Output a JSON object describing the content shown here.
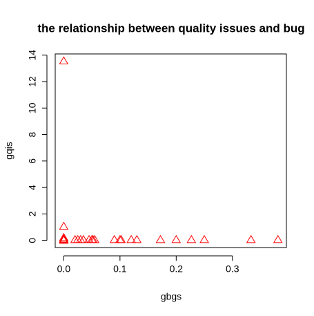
{
  "chart_data": {
    "type": "scatter",
    "title": "the relationship between quality issues and bug",
    "xlabel": "gbgs",
    "ylabel": "gqis",
    "color": "#ff0000",
    "marker": "triangle",
    "x": [
      0,
      0,
      0,
      0,
      0,
      0,
      0.02,
      0.025,
      0.03,
      0.035,
      0.045,
      0.05,
      0.052,
      0.055,
      0.09,
      0.1,
      0.102,
      0.12,
      0.13,
      0.172,
      0.2,
      0.227,
      0.25,
      0.333,
      0.381
    ],
    "y": [
      13.55,
      1.05,
      0.2,
      0.1,
      0.05,
      0,
      0.05,
      0.05,
      0.05,
      0.05,
      0.05,
      0.05,
      0.05,
      0.05,
      0.05,
      0.05,
      0.05,
      0.05,
      0.05,
      0.05,
      0.05,
      0.05,
      0.05,
      0.05,
      0.05
    ],
    "xlim": [
      -0.0152,
      0.396
    ],
    "ylim": [
      -0.54,
      14.09
    ],
    "xticks": [
      {
        "value": 0,
        "label": "0.0"
      },
      0.1,
      0.2,
      0.3
    ],
    "yticks": [
      0,
      2,
      4,
      6,
      8,
      10,
      12,
      14
    ]
  }
}
